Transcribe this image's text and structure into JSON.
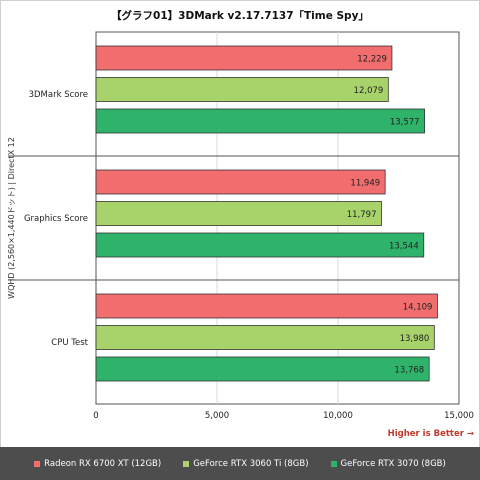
{
  "chart_data": {
    "type": "bar",
    "orientation": "horizontal",
    "title": "【グラフ01】3DMark v2.17.7137「Time Spy」",
    "ylabel": "WQHD (2,560×1,440ドット) | DirectX 12",
    "xlabel": "",
    "annotation": "Higher is Better →",
    "categories": [
      "3DMark Score",
      "Graphics Score",
      "CPU Test"
    ],
    "series": [
      {
        "name": "Radeon RX 6700 XT (12GB)",
        "color": "#f26d6d",
        "values": [
          12229,
          11949,
          14109
        ]
      },
      {
        "name": "GeForce RTX 3060 Ti (8GB)",
        "color": "#a8d36b",
        "values": [
          12079,
          11797,
          13980
        ]
      },
      {
        "name": "GeForce RTX 3070 (8GB)",
        "color": "#2fb36b",
        "values": [
          13577,
          13544,
          13768
        ]
      }
    ],
    "xlim": [
      0,
      15000
    ],
    "xticks": [
      0,
      5000,
      10000,
      15000
    ],
    "xtick_labels": [
      "0",
      "5,000",
      "10,000",
      "15,000"
    ],
    "value_labels": [
      [
        "12,229",
        "11,949",
        "14,109"
      ],
      [
        "12,079",
        "11,797",
        "13,980"
      ],
      [
        "13,577",
        "13,544",
        "13,768"
      ]
    ],
    "grid": true,
    "legend_position": "bottom"
  }
}
